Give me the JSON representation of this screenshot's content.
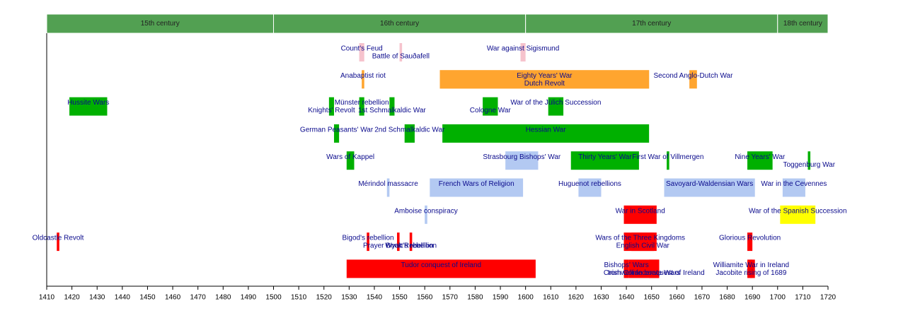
{
  "chart_data": {
    "type": "timeline",
    "xlim": [
      1410,
      1720
    ],
    "xticks": [
      1410,
      1420,
      1430,
      1440,
      1450,
      1460,
      1470,
      1480,
      1490,
      1500,
      1510,
      1520,
      1530,
      1540,
      1550,
      1560,
      1570,
      1580,
      1590,
      1600,
      1610,
      1620,
      1630,
      1640,
      1650,
      1660,
      1670,
      1680,
      1690,
      1700,
      1710,
      1720
    ],
    "periods": [
      {
        "label": "15th century",
        "start": 1410,
        "end": 1500
      },
      {
        "label": "16th century",
        "start": 1500,
        "end": 1600
      },
      {
        "label": "17th century",
        "start": 1600,
        "end": 1700
      },
      {
        "label": "18th century",
        "start": 1700,
        "end": 1720
      }
    ],
    "period_color": "#52a052",
    "rows": [
      {
        "bars": [
          {
            "label": "Count's Feud",
            "start": 1534,
            "end": 1536,
            "color": "#f6c3cd"
          },
          {
            "label": "Battle of Sauðafell",
            "start": 1550,
            "end": 1551,
            "color": "#f6c3cd"
          },
          {
            "label": "War against Sigismund",
            "start": 1598,
            "end": 1600,
            "color": "#f6c3cd"
          }
        ]
      },
      {
        "bars": [
          {
            "label": "Anabaptist riot",
            "start": 1535,
            "end": 1536,
            "color": "#ffa52f"
          },
          {
            "label": "Eighty Years' War",
            "start": 1566,
            "end": 1649,
            "color": "#ffa52f"
          },
          {
            "label": "Dutch Revolt",
            "start": 1566,
            "end": 1649,
            "color": "#ffa52f"
          },
          {
            "label": "Second Anglo-Dutch War",
            "start": 1665,
            "end": 1668,
            "color": "#ffa52f"
          }
        ]
      },
      {
        "bars": [
          {
            "label": "Hussite Wars",
            "start": 1419,
            "end": 1434,
            "color": "#00b000"
          },
          {
            "label": "Münster rebellion",
            "start": 1534,
            "end": 1536,
            "color": "#00b000"
          },
          {
            "label": "Knights' Revolt",
            "start": 1522,
            "end": 1524,
            "color": "#00b000"
          },
          {
            "label": "1st Schmalkaldic War",
            "start": 1546,
            "end": 1548,
            "color": "#00b000"
          },
          {
            "label": "War of the Jülich Succession",
            "start": 1609,
            "end": 1615,
            "color": "#00b000"
          },
          {
            "label": "Cologne War",
            "start": 1583,
            "end": 1589,
            "color": "#00b000"
          }
        ]
      },
      {
        "bars": [
          {
            "label": "Hessian War",
            "start": 1567,
            "end": 1649,
            "color": "#00b000"
          },
          {
            "label": "2nd Schmalkaldic War",
            "start": 1552,
            "end": 1556,
            "color": "#00b000"
          },
          {
            "label": "German Peasants' War",
            "start": 1524,
            "end": 1526,
            "color": "#00b000"
          }
        ]
      },
      {
        "bars": [
          {
            "label": "Wars of Kappel",
            "start": 1529,
            "end": 1532,
            "color": "#00b000"
          },
          {
            "label": "Strasbourg Bishops' War",
            "start": 1592,
            "end": 1605,
            "color": "#b3c9f2"
          },
          {
            "label": "Thirty Years' War",
            "start": 1618,
            "end": 1645,
            "color": "#00b000"
          },
          {
            "label": "First War of Villmergen",
            "start": 1656,
            "end": 1657,
            "color": "#00b000"
          },
          {
            "label": "Nine Years' War",
            "start": 1688,
            "end": 1698,
            "color": "#00b000"
          },
          {
            "label": "Toggenburg War",
            "start": 1712,
            "end": 1713,
            "color": "#00b000"
          }
        ]
      },
      {
        "bars": [
          {
            "label": "Mérindol massacre",
            "start": 1545,
            "end": 1546,
            "color": "#b3c9f2"
          },
          {
            "label": "French Wars of Religion",
            "start": 1562,
            "end": 1599,
            "color": "#b3c9f2"
          },
          {
            "label": "Huguenot rebellions",
            "start": 1621,
            "end": 1630,
            "color": "#b3c9f2"
          },
          {
            "label": "Savoyard-Waldensian Wars",
            "start": 1655,
            "end": 1691,
            "color": "#b3c9f2"
          },
          {
            "label": "War in the Cevennes",
            "start": 1702,
            "end": 1711,
            "color": "#b3c9f2"
          }
        ]
      },
      {
        "bars": [
          {
            "label": "Amboise conspiracy",
            "start": 1560,
            "end": 1561,
            "color": "#b3c9f2"
          },
          {
            "label": "War in Scotland",
            "start": 1639,
            "end": 1652,
            "color": "#ff0000"
          },
          {
            "label": "War of the Spanish Succession",
            "start": 1701,
            "end": 1715,
            "color": "#ffff00"
          }
        ]
      },
      {
        "bars": [
          {
            "label": "Oldcastle Revolt",
            "start": 1414,
            "end": 1415,
            "color": "#ff0000"
          },
          {
            "label": "Bigod's rebellion",
            "start": 1537,
            "end": 1538,
            "color": "#ff0000"
          },
          {
            "label": "Wyatt's rebellion",
            "start": 1554,
            "end": 1555,
            "color": "#ff0000"
          },
          {
            "label": "Prayer Book Rebellion",
            "start": 1549,
            "end": 1550,
            "color": "#ff0000"
          },
          {
            "label": "Wars of the Three Kingdoms",
            "start": 1639,
            "end": 1652,
            "color": "#ff0000"
          },
          {
            "label": "English Civil War",
            "start": 1642,
            "end": 1651,
            "color": "#ff0000"
          },
          {
            "label": "Glorious Revolution",
            "start": 1688,
            "end": 1690,
            "color": "#ff0000"
          }
        ]
      },
      {
        "bars": [
          {
            "label": "Tudor conquest of Ireland",
            "start": 1529,
            "end": 1604,
            "color": "#ff0000"
          },
          {
            "label": "Bishops' Wars",
            "start": 1639,
            "end": 1641,
            "color": "#ff0000"
          },
          {
            "label": "Irish Confederate Wars",
            "start": 1641,
            "end": 1653,
            "color": "#ff0000"
          },
          {
            "label": "Cromwellian conquest of Ireland",
            "start": 1649,
            "end": 1653,
            "color": "#ff0000"
          },
          {
            "label": "Williamite War in Ireland",
            "start": 1688,
            "end": 1691,
            "color": "#ff0000"
          },
          {
            "label": "Jacobite rising of 1689",
            "start": 1689,
            "end": 1690,
            "color": "#ff0000"
          }
        ]
      }
    ]
  }
}
